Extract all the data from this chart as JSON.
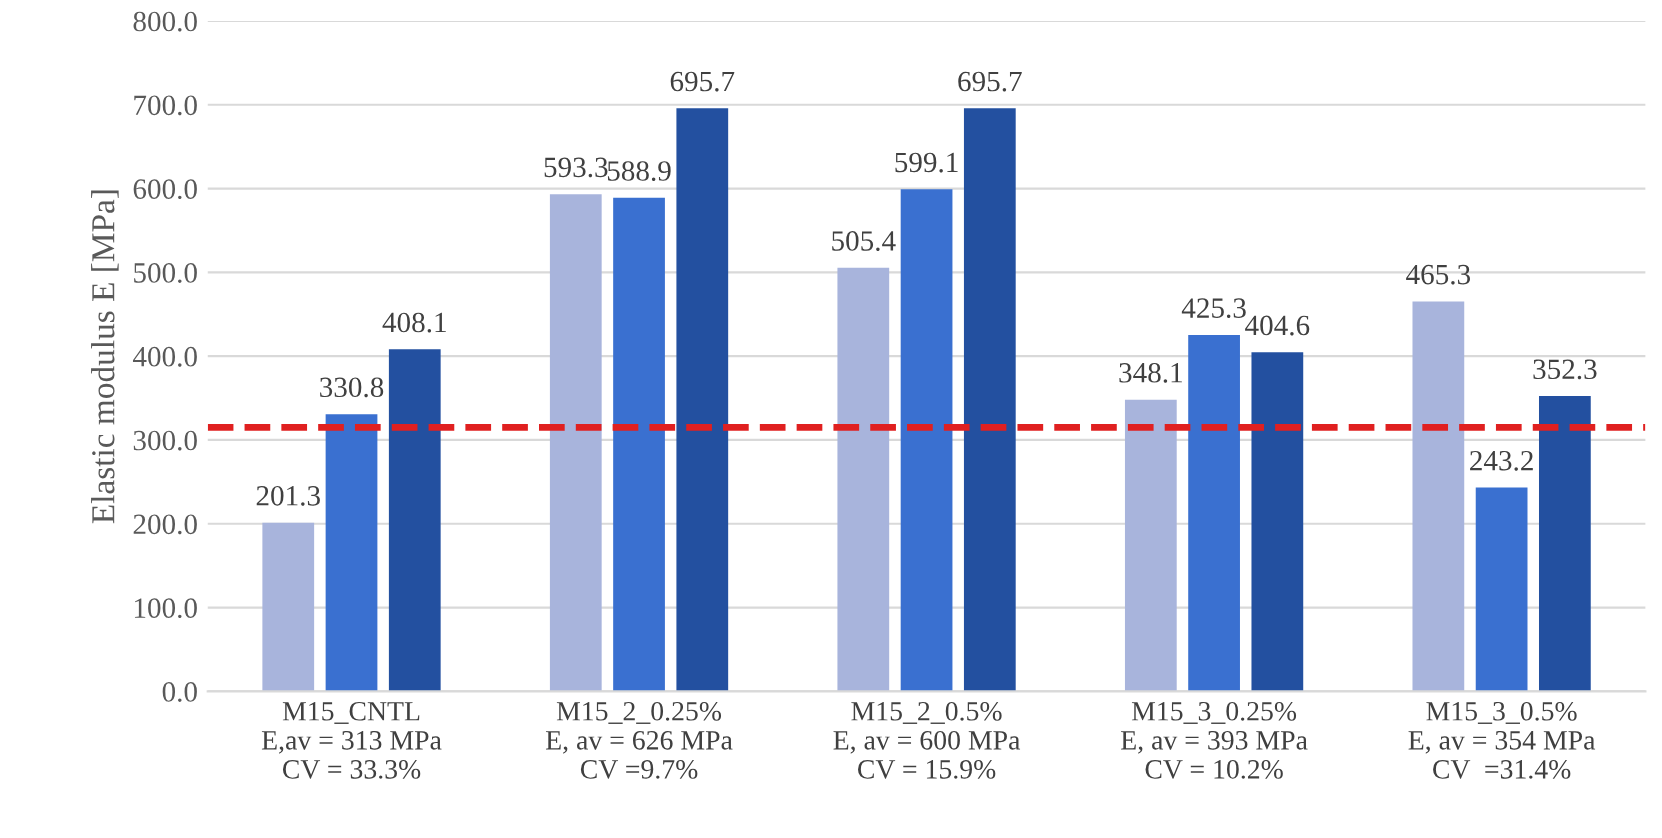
{
  "chart_data": {
    "type": "bar",
    "ylabel": "Elastic modulus E [MPa]",
    "categories": [
      "M15_CNTL\nE,av = 313 MPa\nCV = 33.3%",
      "M15_2_0.25%\nE, av = 626 MPa\nCV =9.7%",
      "M15_2_0.5%\nE, av = 600 MPa\nCV = 15.9%",
      "M15_3_0.25%\nE, av = 393 MPa\nCV = 10.2%",
      "M15_3_0.5%\nE, av = 354 MPa\nCV  =31.4%"
    ],
    "series": [
      {
        "color": "#a8b4dc",
        "values": [
          201.3,
          593.3,
          505.4,
          348.1,
          465.3
        ]
      },
      {
        "color": "#3a70d0",
        "values": [
          330.8,
          588.9,
          599.1,
          425.3,
          243.2
        ]
      },
      {
        "color": "#2350a0",
        "values": [
          408.1,
          695.7,
          695.7,
          404.6,
          352.3
        ]
      }
    ],
    "ylim": [
      0,
      800
    ],
    "yticks": [
      {
        "value": 0,
        "label": "0.0"
      },
      {
        "value": 100,
        "label": "100.0"
      },
      {
        "value": 200,
        "label": "200.0"
      },
      {
        "value": 300,
        "label": "300.0"
      },
      {
        "value": 400,
        "label": "400.0"
      },
      {
        "value": 500,
        "label": "500.0"
      },
      {
        "value": 600,
        "label": "600.0"
      },
      {
        "value": 700,
        "label": "700.0"
      },
      {
        "value": 800,
        "label": "800.0"
      }
    ],
    "ref_lines": [
      {
        "axis": "y",
        "value": 315,
        "color": "#e02020",
        "line_style": "dashed"
      }
    ],
    "data_labels": true,
    "grid": "y",
    "legend": false
  }
}
